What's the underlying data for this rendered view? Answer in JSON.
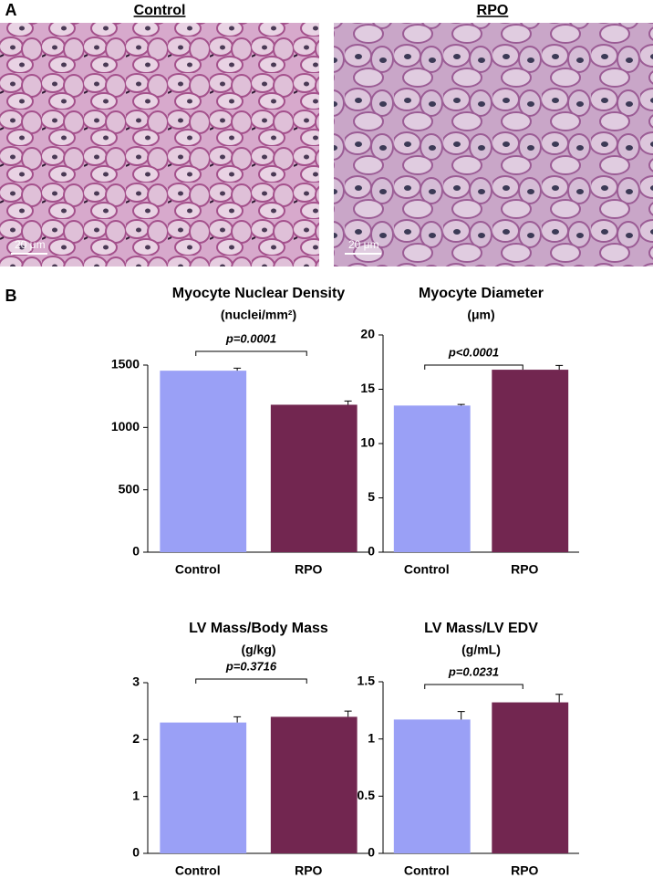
{
  "panels": {
    "a_label": "A",
    "b_label": "B"
  },
  "images": [
    {
      "label": "Control",
      "scale_bar": "20 μm"
    },
    {
      "label": "RPO",
      "scale_bar": "20 μm"
    }
  ],
  "chart_data": [
    {
      "type": "bar",
      "title": "Myocyte Nuclear Density",
      "subtitle": "(nuclei/mm²)",
      "annotation": "p=0.0001",
      "categories": [
        "Control",
        "RPO"
      ],
      "values": [
        1455,
        1182
      ],
      "errors": [
        20,
        30
      ],
      "colors": [
        "#9aa0f6",
        "#722650"
      ],
      "ylim": [
        0,
        1500
      ],
      "yticks": [
        0,
        500,
        1000,
        1500
      ]
    },
    {
      "type": "bar",
      "title": "Myocyte Diameter",
      "subtitle": "(μm)",
      "annotation": "p<0.0001",
      "categories": [
        "Control",
        "RPO"
      ],
      "values": [
        13.5,
        16.8
      ],
      "errors": [
        0.1,
        0.4
      ],
      "colors": [
        "#9aa0f6",
        "#722650"
      ],
      "ylim": [
        0,
        20
      ],
      "yticks": [
        0,
        5,
        10,
        15,
        20
      ]
    },
    {
      "type": "bar",
      "title": "LV Mass/Body Mass",
      "subtitle": "(g/kg)",
      "annotation": "p=0.3716",
      "categories": [
        "Control",
        "RPO"
      ],
      "values": [
        2.3,
        2.4
      ],
      "errors": [
        0.1,
        0.1
      ],
      "colors": [
        "#9aa0f6",
        "#722650"
      ],
      "ylim": [
        0,
        3
      ],
      "yticks": [
        0,
        1,
        2,
        3
      ]
    },
    {
      "type": "bar",
      "title": "LV Mass/LV EDV",
      "subtitle": "(g/mL)",
      "annotation": "p=0.0231",
      "categories": [
        "Control",
        "RPO"
      ],
      "values": [
        1.17,
        1.32
      ],
      "errors": [
        0.07,
        0.07
      ],
      "colors": [
        "#9aa0f6",
        "#722650"
      ],
      "ylim": [
        0,
        1.5
      ],
      "yticks": [
        0,
        0.5,
        1,
        1.5
      ]
    }
  ]
}
